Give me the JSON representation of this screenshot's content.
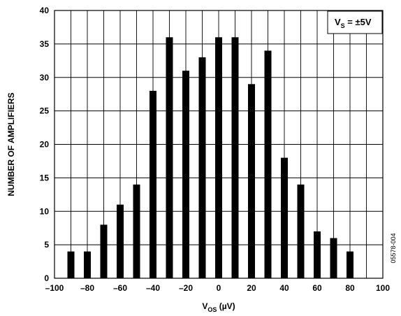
{
  "chart_data": {
    "type": "bar",
    "x": [
      -90,
      -80,
      -70,
      -60,
      -50,
      -40,
      -30,
      -20,
      -10,
      0,
      10,
      20,
      30,
      40,
      50,
      60,
      70,
      80
    ],
    "values": [
      4,
      4,
      8,
      11,
      14,
      28,
      36,
      31,
      33,
      36,
      36,
      29,
      34,
      18,
      14,
      7,
      6,
      4
    ],
    "xlabel": {
      "main": "V",
      "sub": "OS",
      "unit": " (µV)"
    },
    "ylabel": "NUMBER OF AMPLIFIERS",
    "xlim": [
      -100,
      100
    ],
    "ylim": [
      0,
      40
    ],
    "xticks": [
      -100,
      -80,
      -60,
      -40,
      -20,
      0,
      20,
      40,
      60,
      80,
      100
    ],
    "xtick_labels": [
      "–100",
      "–80",
      "–60",
      "–40",
      "–20",
      "0",
      "20",
      "40",
      "60",
      "80",
      "100"
    ],
    "yticks": [
      0,
      5,
      10,
      15,
      20,
      25,
      30,
      35,
      40
    ],
    "grid": true,
    "legend": {
      "main": "V",
      "sub": "S",
      "text": " = ±5V",
      "placement": "top-right"
    },
    "bar_color": "#000000"
  },
  "figure_code": "05578-004"
}
